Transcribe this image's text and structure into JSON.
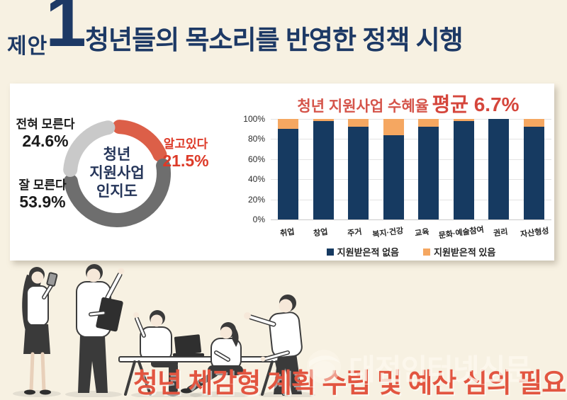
{
  "header": {
    "kicker": "제안",
    "number": "1",
    "title": "청년들의 목소리를 반영한 정책 시행"
  },
  "colors": {
    "background": "#f7f1e2",
    "navy": "#1d3965",
    "bar_navy": "#163a61",
    "bar_orange": "#f5a761",
    "title_red": "#d5544a",
    "donut_red": "#dc5f48",
    "donut_dark_gray": "#6e6e6e",
    "donut_light_gray": "#c9c9c9",
    "banner_red": "#e25540"
  },
  "chart_data": [
    {
      "type": "pie",
      "subtype": "donut",
      "center_label": "청년\n지원사업\n인지도",
      "slices": [
        {
          "label": "알고있다",
          "value": 21.5,
          "display": "21.5%",
          "color": "#dc5f48"
        },
        {
          "label": "잘 모른다",
          "value": 53.9,
          "display": "53.9%",
          "color": "#6e6e6e"
        },
        {
          "label": "전혀 모른다",
          "value": 24.6,
          "display": "24.6%",
          "color": "#c9c9c9"
        }
      ],
      "legend_position": "labels-around",
      "start_angle_deg": -4
    },
    {
      "type": "bar",
      "stacked": true,
      "title": "청년 지원사업 수혜율",
      "title_highlight": "평균  6.7%",
      "categories": [
        "취업",
        "창업",
        "주거",
        "복지·건강",
        "교육",
        "문화·예술참여",
        "권리",
        "자산형성"
      ],
      "series": [
        {
          "name": "지원받은적 없음",
          "color": "#163a61",
          "values": [
            90,
            98,
            92.5,
            83.5,
            92,
            98,
            100,
            92.5
          ]
        },
        {
          "name": "지원받은적 있음",
          "color": "#f5a761",
          "values": [
            10,
            2,
            7.5,
            16.5,
            8,
            2,
            0,
            7.5
          ]
        }
      ],
      "ylim": [
        0,
        100
      ],
      "yticks": [
        0,
        20,
        40,
        60,
        80,
        100
      ],
      "ytick_suffix": "%",
      "grid": true,
      "legend_position": "bottom"
    }
  ],
  "banner": {
    "text": "청년 체감형 계획 수립 및 예산 심의 필요"
  },
  "watermark": {
    "text": "대전인터넷신문"
  }
}
